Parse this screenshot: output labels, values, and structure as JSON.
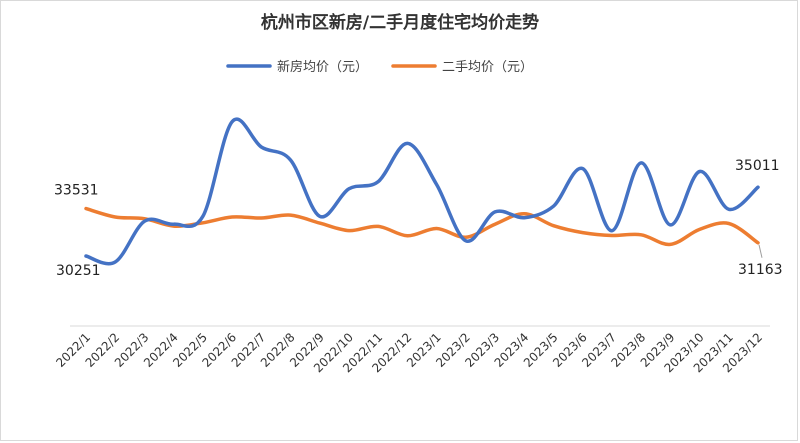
{
  "chart_data": {
    "type": "line",
    "title": "杭州市区新房/二手月度住宅均价走势",
    "xlabel": "",
    "ylabel": "",
    "categories": [
      "2022/1",
      "2022/2",
      "2022/3",
      "2022/4",
      "2022/5",
      "2022/6",
      "2022/7",
      "2022/8",
      "2022/9",
      "2022/10",
      "2022/11",
      "2022/12",
      "2023/1",
      "2023/2",
      "2023/3",
      "2023/4",
      "2023/5",
      "2023/6",
      "2023/7",
      "2023/8",
      "2023/9",
      "2023/10",
      "2023/11",
      "2023/12"
    ],
    "ylim": [
      25400,
      41400
    ],
    "grid": false,
    "legend_position": "top-center",
    "series": [
      {
        "name": "新房均价（元）",
        "color": "#4472C4",
        "values": [
          30251,
          29830,
          32650,
          32450,
          33000,
          39550,
          37800,
          36900,
          33000,
          34900,
          35400,
          38050,
          35200,
          31300,
          33300,
          32900,
          33700,
          36300,
          32000,
          36700,
          32400,
          36100,
          33480,
          35011
        ]
      },
      {
        "name": "二手均价（元）",
        "color": "#ED7D31",
        "values": [
          33531,
          32950,
          32830,
          32320,
          32550,
          32950,
          32880,
          33080,
          32530,
          32010,
          32300,
          31650,
          32150,
          31550,
          32450,
          33180,
          32350,
          31870,
          31670,
          31720,
          31050,
          32090,
          32500,
          31163
        ]
      }
    ],
    "data_labels": [
      {
        "series": 0,
        "index": 0,
        "text": "30251"
      },
      {
        "series": 1,
        "index": 0,
        "text": "33531"
      },
      {
        "series": 0,
        "index": 23,
        "text": "35011"
      },
      {
        "series": 1,
        "index": 23,
        "text": "31163"
      }
    ]
  }
}
